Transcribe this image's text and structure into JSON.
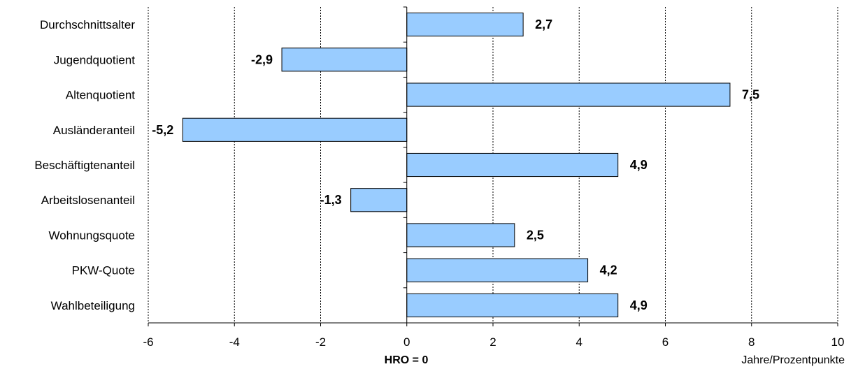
{
  "chart_data": {
    "type": "bar",
    "orientation": "horizontal",
    "categories": [
      "Durchschnittsalter",
      "Jugendquotient",
      "Altenquotient",
      "Ausländeranteil",
      "Beschäftigtenanteil",
      "Arbeitslosenanteil",
      "Wohnungsquote",
      "PKW-Quote",
      "Wahlbeteiligung"
    ],
    "values": [
      2.7,
      -2.9,
      7.5,
      -5.2,
      4.9,
      -1.3,
      2.5,
      4.2,
      4.9
    ],
    "value_labels": [
      "2,7",
      "-2,9",
      "7,5",
      "-5,2",
      "4,9",
      "-1,3",
      "2,5",
      "4,2",
      "4,9"
    ],
    "xlim": [
      -6,
      10
    ],
    "xticks": [
      "-6",
      "-4",
      "-2",
      "0",
      "2",
      "4",
      "6",
      "8",
      "10"
    ],
    "xlabel": "HRO = 0",
    "xunit": "Jahre/Prozentpunkte",
    "grid": "vertical dotted",
    "bar_color": "#99ccff"
  }
}
